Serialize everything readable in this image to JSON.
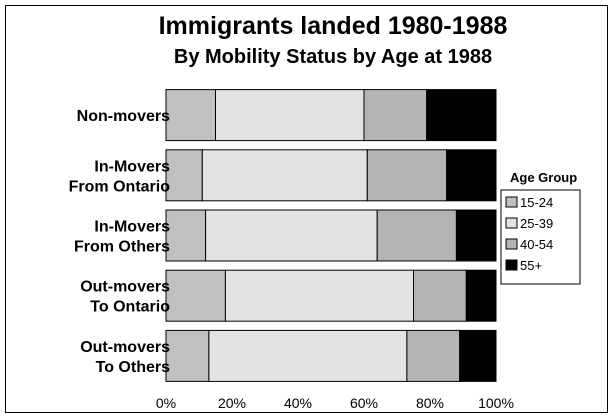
{
  "chart_data": {
    "type": "bar",
    "orientation": "horizontal",
    "stacked": "percent",
    "title": "Immigrants landed 1980-1988",
    "subtitle": "By Mobility Status by Age at 1988",
    "categories": [
      [
        "Non-movers"
      ],
      [
        "In-Movers",
        "From Ontario"
      ],
      [
        "In-Movers",
        "From Others"
      ],
      [
        "Out-movers",
        "To Ontario"
      ],
      [
        "Out-movers",
        "To Others"
      ]
    ],
    "series": [
      {
        "name": "15-24",
        "color": "#c0c0c0",
        "values": [
          15,
          11,
          12,
          18,
          13
        ]
      },
      {
        "name": "25-39",
        "color": "#e3e3e3",
        "values": [
          45,
          50,
          52,
          57,
          60
        ]
      },
      {
        "name": "40-54",
        "color": "#b4b4b4",
        "values": [
          19,
          24,
          24,
          16,
          16
        ]
      },
      {
        "name": "55+",
        "color": "#000000",
        "values": [
          21,
          15,
          12,
          9,
          11
        ]
      }
    ],
    "xlim": [
      0,
      100
    ],
    "x_ticks": [
      "0%",
      "20%",
      "40%",
      "60%",
      "80%",
      "100%"
    ],
    "grid": false,
    "legend": {
      "title": "Age Group",
      "placement": "right"
    }
  }
}
